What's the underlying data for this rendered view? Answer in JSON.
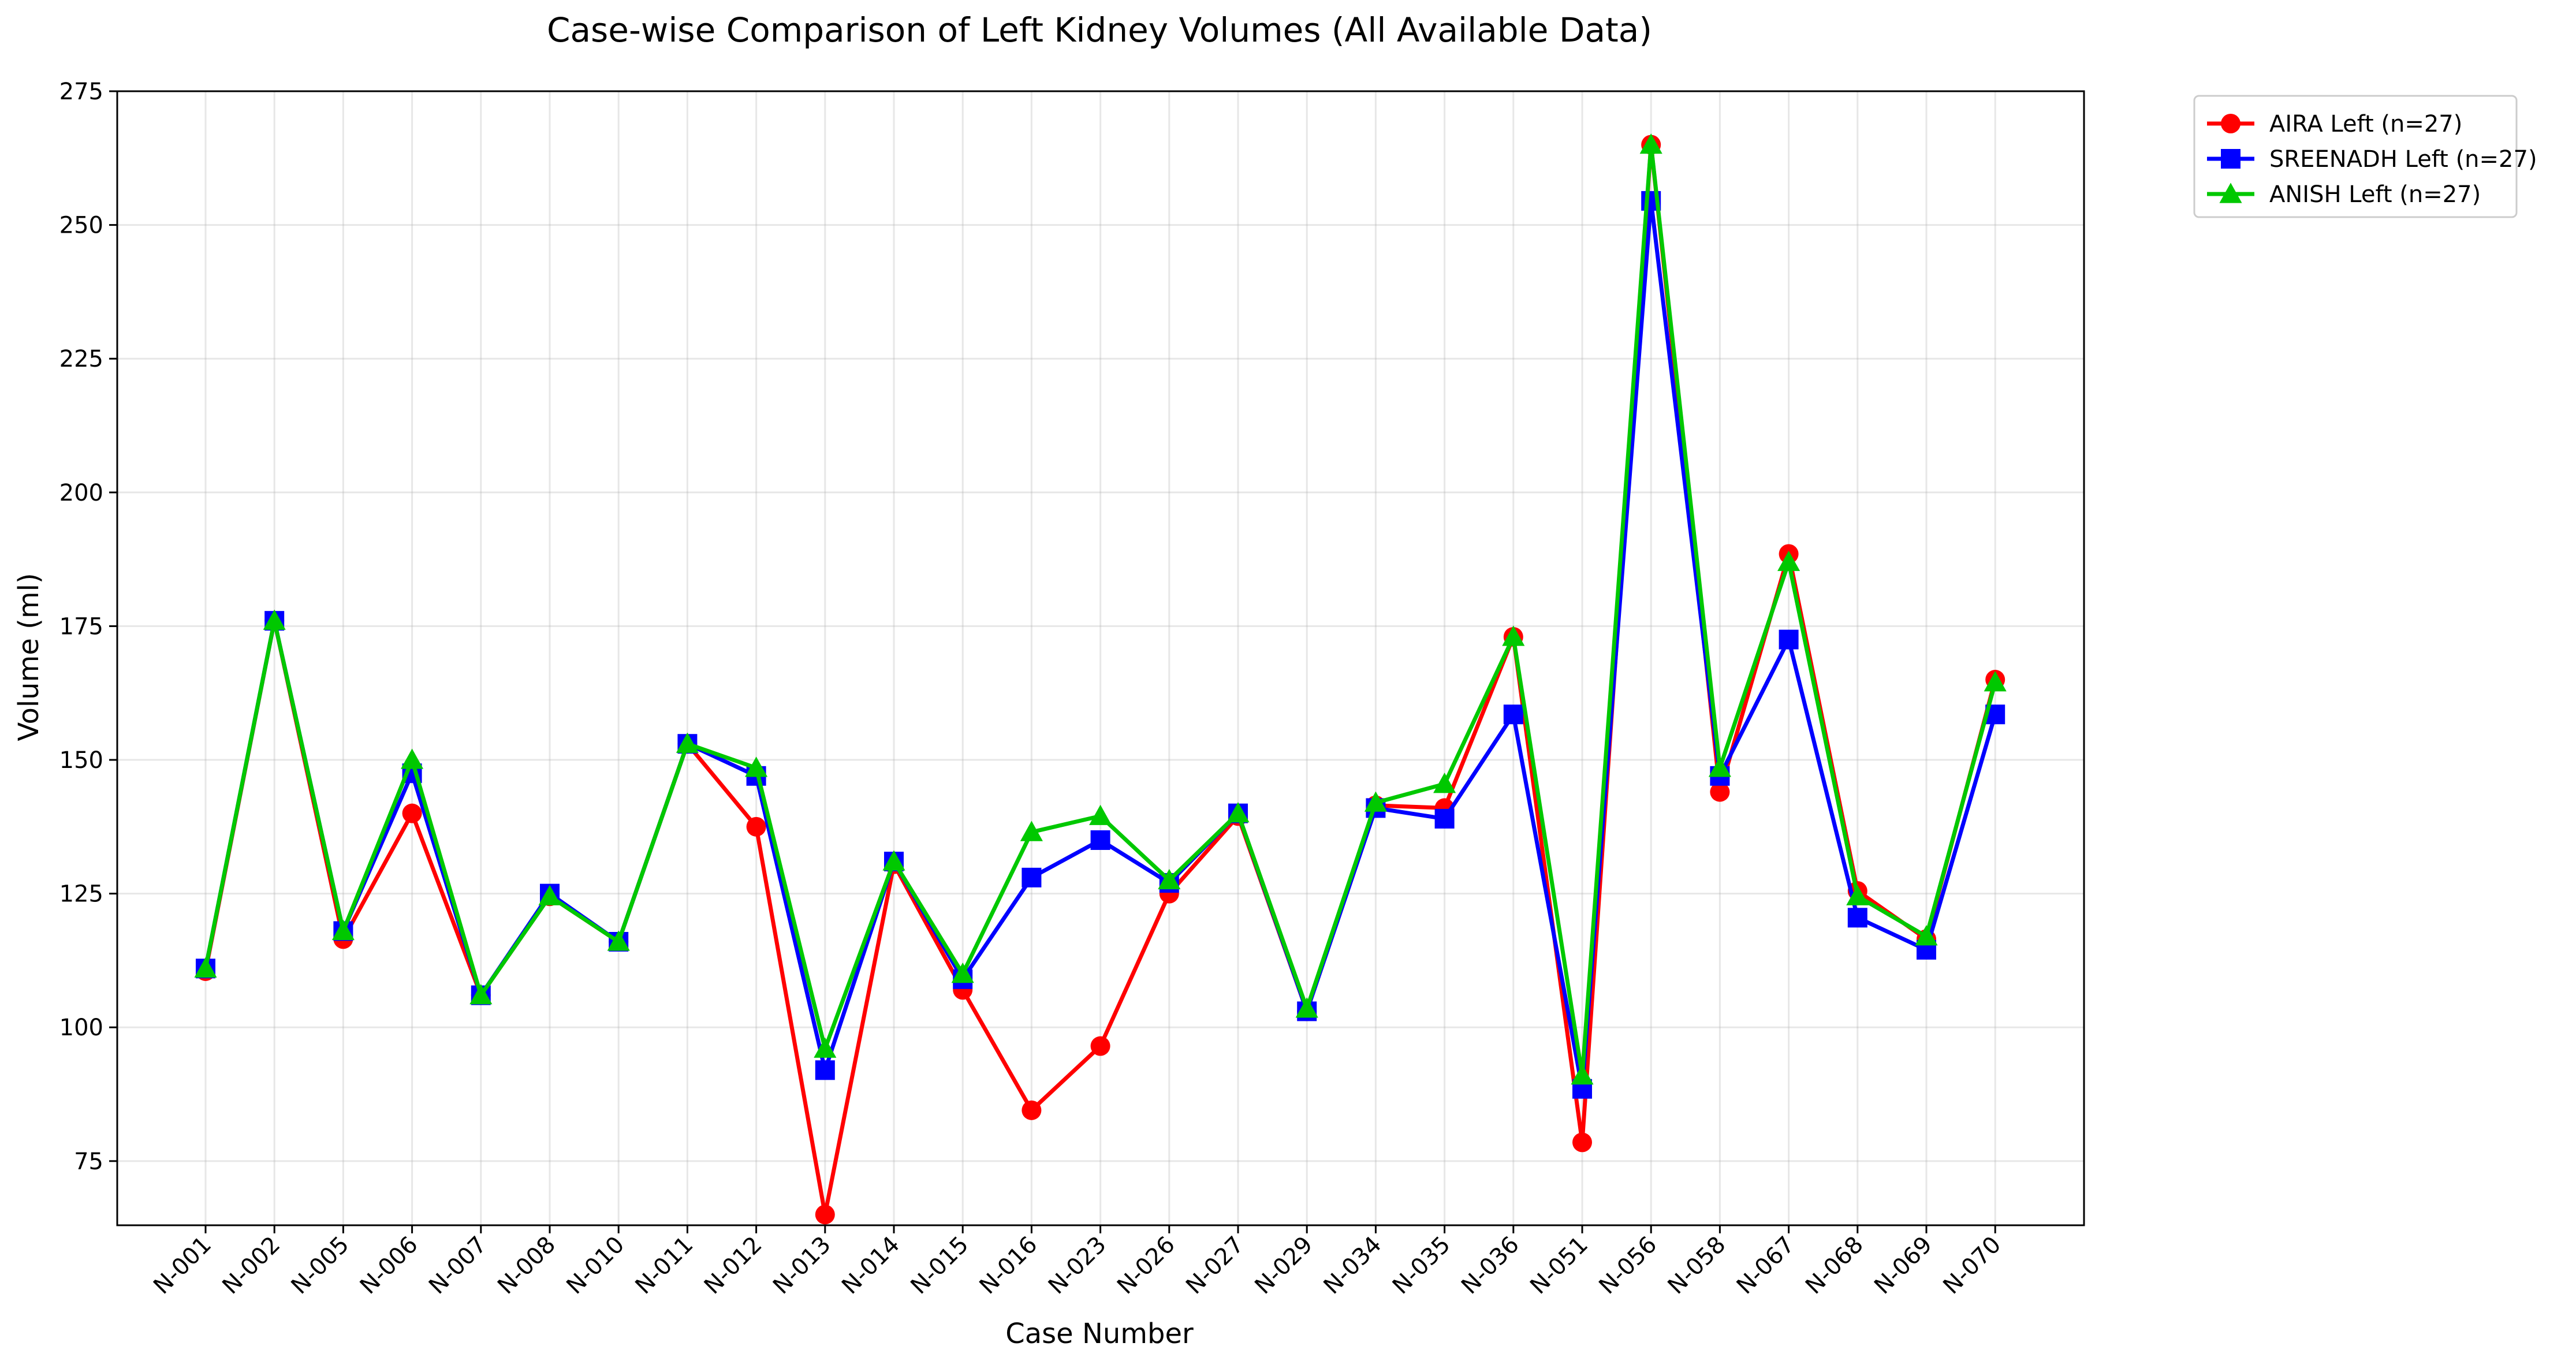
{
  "chart_data": {
    "type": "line",
    "title": "Case-wise Comparison of Left Kidney Volumes (All Available Data)",
    "xlabel": "Case Number",
    "ylabel": "Volume (ml)",
    "ylim": [
      63,
      275
    ],
    "yticks": [
      75,
      100,
      125,
      150,
      175,
      200,
      225,
      250,
      275
    ],
    "grid": true,
    "legend_position": "outside-top-right",
    "categories": [
      "N-001",
      "N-002",
      "N-005",
      "N-006",
      "N-007",
      "N-008",
      "N-010",
      "N-011",
      "N-012",
      "N-013",
      "N-014",
      "N-015",
      "N-016",
      "N-023",
      "N-026",
      "N-027",
      "N-029",
      "N-034",
      "N-035",
      "N-036",
      "N-051",
      "N-056",
      "N-058",
      "N-067",
      "N-068",
      "N-069",
      "N-070"
    ],
    "series": [
      {
        "name": "AIRA Left (n=27)",
        "color": "#ff0000",
        "marker": "circle",
        "values": [
          110.5,
          176.0,
          116.5,
          140.0,
          106.0,
          124.5,
          116.0,
          153.0,
          137.5,
          65.0,
          130.5,
          107.0,
          84.5,
          96.5,
          125.0,
          139.5,
          103.0,
          141.5,
          141.0,
          173.0,
          78.5,
          265.0,
          144.0,
          188.5,
          125.5,
          116.5,
          165.0
        ]
      },
      {
        "name": "SREENADH Left (n=27)",
        "color": "#0000ff",
        "marker": "square",
        "values": [
          111.0,
          176.0,
          118.0,
          147.5,
          106.0,
          125.0,
          116.0,
          153.0,
          147.0,
          92.0,
          131.0,
          109.0,
          128.0,
          135.0,
          127.0,
          140.0,
          103.0,
          141.0,
          139.0,
          158.5,
          88.5,
          254.5,
          147.0,
          172.5,
          120.5,
          114.5,
          158.5
        ]
      },
      {
        "name": "ANISH Left (n=27)",
        "color": "#00c800",
        "marker": "triangle",
        "values": [
          111.0,
          176.0,
          118.0,
          150.0,
          106.0,
          124.5,
          116.0,
          153.0,
          148.5,
          96.0,
          131.0,
          110.0,
          136.5,
          139.5,
          127.5,
          140.0,
          103.5,
          142.0,
          145.5,
          173.0,
          91.0,
          265.0,
          148.5,
          187.0,
          124.5,
          117.0,
          164.5
        ]
      }
    ]
  }
}
